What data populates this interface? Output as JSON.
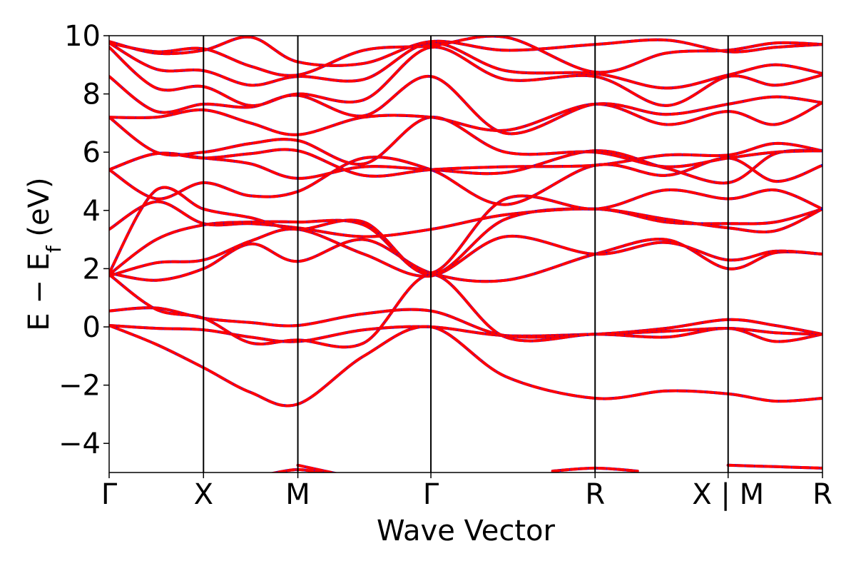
{
  "chart_data": {
    "type": "line",
    "title": "",
    "xlabel": "Wave Vector",
    "ylabel_main": "E − E",
    "ylabel_sub": "f",
    "ylabel_unit": " (eV)",
    "ylim": [
      -5,
      10
    ],
    "y_ticks": [
      -4,
      -2,
      0,
      2,
      4,
      6,
      8,
      10
    ],
    "y_tick_labels": [
      "−4",
      "−2",
      "0",
      "2",
      "4",
      "6",
      "8",
      "10"
    ],
    "xlim": [
      0,
      7.5
    ],
    "kpoints": [
      {
        "x": 0.0,
        "label": "Γ"
      },
      {
        "x": 1.0,
        "label": "X"
      },
      {
        "x": 2.0,
        "label": "M"
      },
      {
        "x": 3.41,
        "label": "Γ"
      },
      {
        "x": 5.15,
        "label": "R"
      },
      {
        "x": 6.56,
        "label": "X | M"
      },
      {
        "x": 7.56,
        "label": "R"
      }
    ],
    "grid": false,
    "colors": {
      "dashed_series": "#0000ff",
      "solid_series": "#ff0000",
      "axis": "#000000"
    },
    "series": [
      {
        "values": [
          [
            0,
            0.05
          ],
          [
            0.5,
            -0.05
          ],
          [
            1,
            -0.1
          ],
          [
            1.5,
            -0.35
          ],
          [
            2,
            -0.5
          ],
          [
            2.7,
            -0.1
          ],
          [
            3.41,
            0.0
          ],
          [
            4.2,
            -0.3
          ],
          [
            5.15,
            -0.25
          ],
          [
            5.9,
            -0.15
          ],
          [
            6.56,
            -0.05
          ],
          [
            7.06,
            -0.2
          ],
          [
            7.56,
            -0.25
          ]
        ]
      },
      {
        "values": [
          [
            0,
            0.05
          ],
          [
            0.5,
            -0.6
          ],
          [
            1,
            -1.4
          ],
          [
            1.5,
            -2.25
          ],
          [
            2,
            -2.65
          ],
          [
            2.7,
            -1.0
          ],
          [
            3.41,
            0.0
          ],
          [
            4.2,
            -1.7
          ],
          [
            5.15,
            -2.45
          ],
          [
            5.9,
            -2.2
          ],
          [
            6.56,
            -2.3
          ],
          [
            7.06,
            -2.55
          ],
          [
            7.56,
            -2.45
          ]
        ]
      },
      {
        "values": [
          [
            0,
            0.55
          ],
          [
            0.5,
            0.65
          ],
          [
            1,
            0.3
          ],
          [
            1.5,
            0.15
          ],
          [
            2,
            0.05
          ],
          [
            2.7,
            0.45
          ],
          [
            3.41,
            0.55
          ],
          [
            4.2,
            -0.3
          ],
          [
            5.15,
            -0.25
          ],
          [
            5.9,
            -0.05
          ],
          [
            6.56,
            0.25
          ],
          [
            7.06,
            0.05
          ],
          [
            7.56,
            -0.25
          ]
        ]
      },
      {
        "values": [
          [
            0,
            1.8
          ],
          [
            0.5,
            0.6
          ],
          [
            1,
            0.3
          ],
          [
            1.5,
            -0.55
          ],
          [
            2,
            -0.45
          ],
          [
            2.7,
            -0.55
          ],
          [
            3.41,
            1.8
          ],
          [
            4.2,
            -0.35
          ],
          [
            5.15,
            -0.25
          ],
          [
            5.9,
            -0.35
          ],
          [
            6.56,
            -0.05
          ],
          [
            7.06,
            -0.5
          ],
          [
            7.56,
            -0.25
          ]
        ]
      },
      {
        "values": [
          [
            0,
            1.85
          ],
          [
            0.5,
            1.6
          ],
          [
            1,
            2.0
          ],
          [
            1.5,
            2.85
          ],
          [
            2,
            2.25
          ],
          [
            2.7,
            3.0
          ],
          [
            3.41,
            1.85
          ],
          [
            4.2,
            1.6
          ],
          [
            5.15,
            2.5
          ],
          [
            5.9,
            3.0
          ],
          [
            6.56,
            2.0
          ],
          [
            7.06,
            2.55
          ],
          [
            7.56,
            2.5
          ]
        ]
      },
      {
        "values": [
          [
            0,
            1.75
          ],
          [
            0.5,
            2.2
          ],
          [
            1,
            2.3
          ],
          [
            1.5,
            2.95
          ],
          [
            2,
            3.35
          ],
          [
            2.7,
            2.5
          ],
          [
            3.41,
            1.75
          ],
          [
            4.2,
            3.1
          ],
          [
            5.15,
            2.5
          ],
          [
            5.9,
            2.9
          ],
          [
            6.56,
            2.3
          ],
          [
            7.06,
            2.6
          ],
          [
            7.56,
            2.5
          ]
        ]
      },
      {
        "values": [
          [
            0,
            1.8
          ],
          [
            0.5,
            3.0
          ],
          [
            1,
            3.5
          ],
          [
            1.5,
            3.6
          ],
          [
            2,
            3.6
          ],
          [
            2.7,
            3.5
          ],
          [
            3.41,
            1.8
          ],
          [
            4.2,
            3.7
          ],
          [
            5.15,
            4.05
          ],
          [
            5.9,
            3.6
          ],
          [
            6.56,
            3.55
          ],
          [
            7.06,
            3.6
          ],
          [
            7.56,
            4.05
          ]
        ]
      },
      {
        "values": [
          [
            0,
            3.35
          ],
          [
            0.5,
            4.3
          ],
          [
            1,
            3.55
          ],
          [
            1.5,
            3.55
          ],
          [
            2,
            3.4
          ],
          [
            2.7,
            3.1
          ],
          [
            3.41,
            3.35
          ],
          [
            4.2,
            3.85
          ],
          [
            5.15,
            4.05
          ],
          [
            5.9,
            3.7
          ],
          [
            6.56,
            3.4
          ],
          [
            7.06,
            3.3
          ],
          [
            7.56,
            4.05
          ]
        ]
      },
      {
        "values": [
          [
            0,
            1.85
          ],
          [
            0.5,
            4.7
          ],
          [
            1,
            4.05
          ],
          [
            1.5,
            3.75
          ],
          [
            2,
            3.35
          ],
          [
            2.7,
            3.6
          ],
          [
            3.41,
            1.85
          ],
          [
            4.2,
            4.4
          ],
          [
            5.15,
            4.05
          ],
          [
            5.9,
            4.7
          ],
          [
            6.56,
            4.4
          ],
          [
            7.06,
            4.7
          ],
          [
            7.56,
            4.05
          ]
        ]
      },
      {
        "values": [
          [
            0,
            5.4
          ],
          [
            0.5,
            4.4
          ],
          [
            1,
            4.95
          ],
          [
            1.5,
            4.5
          ],
          [
            2,
            4.65
          ],
          [
            2.7,
            5.8
          ],
          [
            3.41,
            5.4
          ],
          [
            4.2,
            4.2
          ],
          [
            5.15,
            5.55
          ],
          [
            5.9,
            5.2
          ],
          [
            6.56,
            5.8
          ],
          [
            7.06,
            5.0
          ],
          [
            7.56,
            5.55
          ]
        ]
      },
      {
        "values": [
          [
            0,
            5.4
          ],
          [
            0.5,
            5.95
          ],
          [
            1,
            5.8
          ],
          [
            1.5,
            5.6
          ],
          [
            2,
            5.1
          ],
          [
            2.7,
            5.5
          ],
          [
            3.41,
            5.4
          ],
          [
            4.2,
            5.3
          ],
          [
            5.15,
            6.05
          ],
          [
            5.9,
            5.45
          ],
          [
            6.56,
            4.95
          ],
          [
            7.06,
            5.95
          ],
          [
            7.56,
            6.05
          ]
        ]
      },
      {
        "values": [
          [
            0,
            5.4
          ],
          [
            0.5,
            5.95
          ],
          [
            1,
            5.8
          ],
          [
            1.5,
            5.95
          ],
          [
            2,
            6.05
          ],
          [
            2.7,
            5.2
          ],
          [
            3.41,
            5.4
          ],
          [
            4.2,
            5.5
          ],
          [
            5.15,
            5.55
          ],
          [
            5.9,
            5.9
          ],
          [
            6.56,
            5.9
          ],
          [
            7.06,
            6.3
          ],
          [
            7.56,
            6.05
          ]
        ]
      },
      {
        "values": [
          [
            0,
            7.2
          ],
          [
            0.5,
            6.0
          ],
          [
            1,
            6.0
          ],
          [
            1.5,
            6.3
          ],
          [
            2,
            6.4
          ],
          [
            2.7,
            5.6
          ],
          [
            3.41,
            7.2
          ],
          [
            4.2,
            6.0
          ],
          [
            5.15,
            6.0
          ],
          [
            5.9,
            5.5
          ],
          [
            6.56,
            5.8
          ],
          [
            7.06,
            6.0
          ],
          [
            7.56,
            6.05
          ]
        ]
      },
      {
        "values": [
          [
            0,
            7.2
          ],
          [
            0.5,
            7.2
          ],
          [
            1,
            7.45
          ],
          [
            1.5,
            7.0
          ],
          [
            2,
            6.6
          ],
          [
            2.7,
            7.2
          ],
          [
            3.41,
            7.2
          ],
          [
            4.2,
            6.75
          ],
          [
            5.15,
            7.65
          ],
          [
            5.9,
            6.95
          ],
          [
            6.56,
            7.4
          ],
          [
            7.06,
            6.95
          ],
          [
            7.56,
            7.7
          ]
        ]
      },
      {
        "values": [
          [
            0,
            8.6
          ],
          [
            0.5,
            7.4
          ],
          [
            1,
            7.65
          ],
          [
            1.5,
            7.55
          ],
          [
            2,
            7.95
          ],
          [
            2.7,
            7.25
          ],
          [
            3.41,
            8.6
          ],
          [
            4.2,
            6.65
          ],
          [
            5.15,
            7.65
          ],
          [
            5.9,
            7.3
          ],
          [
            6.56,
            7.65
          ],
          [
            7.06,
            7.9
          ],
          [
            7.56,
            7.7
          ]
        ]
      },
      {
        "values": [
          [
            0,
            9.6
          ],
          [
            0.5,
            8.2
          ],
          [
            1,
            8.25
          ],
          [
            1.5,
            7.6
          ],
          [
            2,
            8.0
          ],
          [
            2.7,
            7.8
          ],
          [
            3.41,
            9.6
          ],
          [
            4.2,
            8.5
          ],
          [
            5.15,
            8.6
          ],
          [
            5.9,
            7.6
          ],
          [
            6.56,
            8.6
          ],
          [
            7.06,
            8.3
          ],
          [
            7.56,
            8.65
          ]
        ]
      },
      {
        "values": [
          [
            0,
            9.75
          ],
          [
            0.5,
            8.85
          ],
          [
            1,
            8.8
          ],
          [
            1.5,
            8.3
          ],
          [
            2,
            8.6
          ],
          [
            2.7,
            8.5
          ],
          [
            3.41,
            9.75
          ],
          [
            4.2,
            8.8
          ],
          [
            5.15,
            8.7
          ],
          [
            5.9,
            8.2
          ],
          [
            6.56,
            8.65
          ],
          [
            7.06,
            9.0
          ],
          [
            7.56,
            8.7
          ]
        ]
      },
      {
        "values": [
          [
            0,
            9.8
          ],
          [
            0.5,
            9.4
          ],
          [
            1,
            9.5
          ],
          [
            1.5,
            9.95
          ],
          [
            2,
            9.1
          ],
          [
            2.7,
            9.05
          ],
          [
            3.41,
            9.8
          ],
          [
            4.2,
            9.5
          ],
          [
            5.15,
            9.7
          ],
          [
            5.9,
            9.85
          ],
          [
            6.56,
            9.45
          ],
          [
            7.06,
            9.6
          ],
          [
            7.56,
            9.7
          ]
        ]
      },
      {
        "values": [
          [
            0,
            9.75
          ],
          [
            0.5,
            9.45
          ],
          [
            1,
            9.55
          ],
          [
            1.5,
            8.95
          ],
          [
            2,
            8.65
          ],
          [
            2.7,
            9.5
          ],
          [
            3.41,
            9.65
          ],
          [
            4.2,
            9.95
          ],
          [
            5.15,
            8.75
          ],
          [
            5.9,
            9.4
          ],
          [
            6.56,
            9.5
          ],
          [
            7.06,
            9.75
          ],
          [
            7.56,
            9.7
          ]
        ]
      },
      {
        "values": [
          [
            2,
            -4.75
          ],
          [
            2.5,
            -5.1
          ]
        ]
      },
      {
        "values": [
          [
            1.7,
            -5.05
          ],
          [
            2,
            -4.9
          ],
          [
            2.3,
            -5.05
          ]
        ]
      },
      {
        "values": [
          [
            4.7,
            -4.95
          ],
          [
            5.15,
            -4.85
          ],
          [
            5.6,
            -4.95
          ]
        ]
      },
      {
        "values": [
          [
            6.56,
            -4.75
          ],
          [
            7.06,
            -4.8
          ],
          [
            7.56,
            -4.85
          ]
        ]
      }
    ]
  }
}
